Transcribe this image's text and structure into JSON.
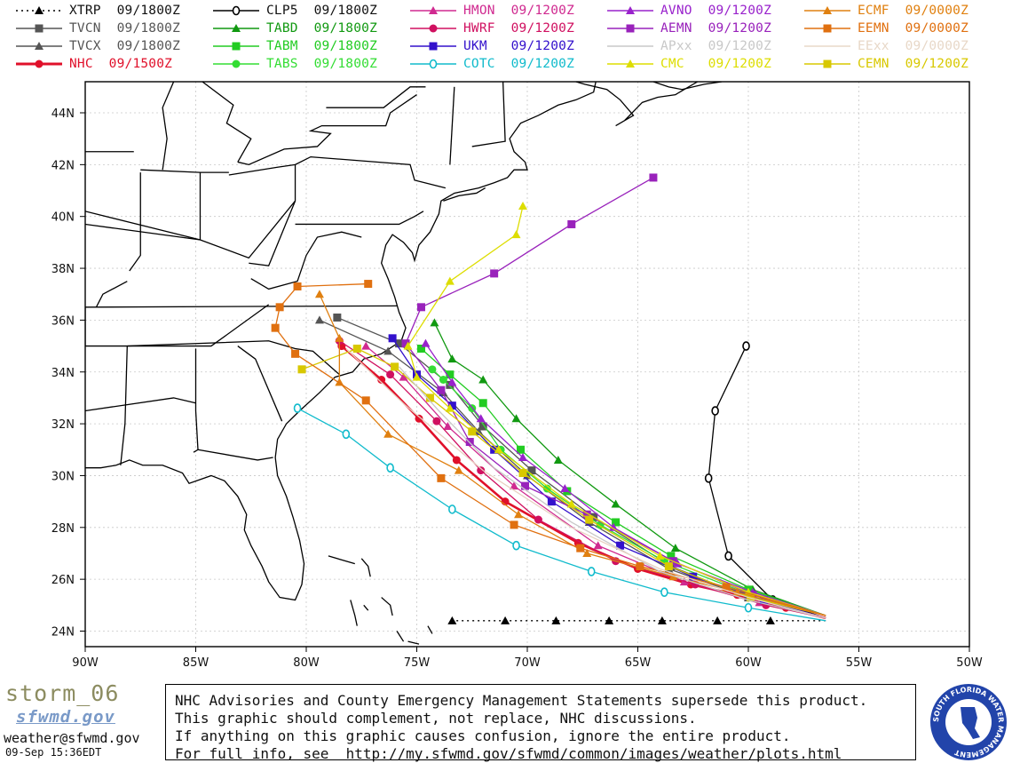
{
  "legend": [
    {
      "label": "XTRP  09/1800Z",
      "color": "#000000",
      "marker": "triangle",
      "dash": true
    },
    {
      "label": "TVCN  09/1800Z",
      "color": "#555555",
      "marker": "square"
    },
    {
      "label": "TVCX  09/1800Z",
      "color": "#555555",
      "marker": "triangle"
    },
    {
      "label": "NHC  09/1500Z",
      "color": "#e0102a",
      "marker": "circle",
      "bold": true
    },
    {
      "label": "CLP5  09/1800Z",
      "color": "#000000",
      "marker": "ring"
    },
    {
      "label": "TABD  09/1800Z",
      "color": "#119911",
      "marker": "triangle"
    },
    {
      "label": "TABM  09/1800Z",
      "color": "#22cc22",
      "marker": "square"
    },
    {
      "label": "TABS  09/1800Z",
      "color": "#33dd33",
      "marker": "circle"
    },
    {
      "label": "HMON  09/1200Z",
      "color": "#d02a90",
      "marker": "triangle"
    },
    {
      "label": "HWRF  09/1200Z",
      "color": "#d01060",
      "marker": "circle"
    },
    {
      "label": "UKM   09/1200Z",
      "color": "#3311cc",
      "marker": "square"
    },
    {
      "label": "COTC  09/1200Z",
      "color": "#11bbcc",
      "marker": "ring"
    },
    {
      "label": "AVNO  09/1200Z",
      "color": "#9922cc",
      "marker": "triangle"
    },
    {
      "label": "AEMN  09/1200Z",
      "color": "#9922bb",
      "marker": "square"
    },
    {
      "label": "APxx  09/1200Z",
      "color": "#c8c8c8",
      "marker": "none"
    },
    {
      "label": "CMC   09/1200Z",
      "color": "#dddd00",
      "marker": "triangle"
    },
    {
      "label": "ECMF  09/0000Z",
      "color": "#e08010",
      "marker": "triangle"
    },
    {
      "label": "EEMN  09/0000Z",
      "color": "#e07010",
      "marker": "square"
    },
    {
      "label": "EExx  09/0000Z",
      "color": "#e8d8c8",
      "marker": "none"
    },
    {
      "label": "CEMN  09/1200Z",
      "color": "#d8c800",
      "marker": "square"
    }
  ],
  "map": {
    "lat_labels": [
      "24N",
      "26N",
      "28N",
      "30N",
      "32N",
      "34N",
      "36N",
      "38N",
      "40N",
      "42N",
      "44N"
    ],
    "lon_labels": [
      "90W",
      "85W",
      "80W",
      "75W",
      "70W",
      "65W",
      "60W",
      "55W",
      "50W"
    ],
    "lon_range": [
      -90,
      -50
    ],
    "lat_range": [
      23.4,
      45.2
    ],
    "grid": true
  },
  "chart_data": {
    "type": "map-tracks",
    "tracks": [
      {
        "name": "XTRP",
        "color": "#000000",
        "marker": "triangle",
        "dash": true,
        "points": [
          [
            -56.5,
            24.4
          ],
          [
            -59,
            24.4
          ],
          [
            -61.4,
            24.4
          ],
          [
            -63.9,
            24.4
          ],
          [
            -66.3,
            24.4
          ],
          [
            -68.7,
            24.4
          ],
          [
            -71,
            24.4
          ],
          [
            -73.4,
            24.4
          ]
        ]
      },
      {
        "name": "CLP5",
        "color": "#000000",
        "marker": "ring",
        "points": [
          [
            -56.5,
            24.5
          ],
          [
            -58.9,
            25.2
          ],
          [
            -60.9,
            26.9
          ],
          [
            -61.8,
            29.9
          ],
          [
            -61.5,
            32.5
          ],
          [
            -60.1,
            35
          ]
        ]
      },
      {
        "name": "NHC",
        "color": "#e0102a",
        "marker": "circle",
        "bold": true,
        "points": [
          [
            -56.5,
            24.5
          ],
          [
            -58.3,
            24.9
          ],
          [
            -60.5,
            25.4
          ],
          [
            -62.6,
            25.8
          ],
          [
            -65,
            26.4
          ],
          [
            -67.7,
            27.4
          ],
          [
            -71,
            29
          ],
          [
            -73.2,
            30.6
          ],
          [
            -74.9,
            32.2
          ],
          [
            -76.6,
            33.7
          ],
          [
            -78.4,
            35
          ]
        ]
      },
      {
        "name": "TVCN",
        "color": "#555555",
        "marker": "square",
        "points": [
          [
            -56.5,
            24.5
          ],
          [
            -60,
            25.3
          ],
          [
            -63.5,
            26.5
          ],
          [
            -67,
            28.4
          ],
          [
            -69.8,
            30.2
          ],
          [
            -72,
            31.9
          ],
          [
            -73.5,
            33.5
          ],
          [
            -75.8,
            35.1
          ],
          [
            -78.6,
            36.1
          ]
        ]
      },
      {
        "name": "TVCX",
        "color": "#555555",
        "marker": "triangle",
        "points": [
          [
            -56.5,
            24.5
          ],
          [
            -60,
            25.3
          ],
          [
            -63.6,
            26.4
          ],
          [
            -67.2,
            28.2
          ],
          [
            -70,
            30
          ],
          [
            -72.2,
            31.7
          ],
          [
            -73.8,
            33.2
          ],
          [
            -76.3,
            34.8
          ],
          [
            -79.4,
            36
          ]
        ]
      },
      {
        "name": "TABD",
        "color": "#119911",
        "marker": "triangle",
        "points": [
          [
            -56.5,
            24.6
          ],
          [
            -59.8,
            25.6
          ],
          [
            -63.3,
            27.2
          ],
          [
            -66,
            28.9
          ],
          [
            -68.6,
            30.6
          ],
          [
            -70.5,
            32.2
          ],
          [
            -72,
            33.7
          ],
          [
            -73.4,
            34.5
          ],
          [
            -74.2,
            35.9
          ]
        ]
      },
      {
        "name": "TABM",
        "color": "#22cc22",
        "marker": "square",
        "points": [
          [
            -56.5,
            24.6
          ],
          [
            -60,
            25.6
          ],
          [
            -63.5,
            26.9
          ],
          [
            -66,
            28.2
          ],
          [
            -68.2,
            29.4
          ],
          [
            -70.3,
            31
          ],
          [
            -72,
            32.8
          ],
          [
            -73.5,
            33.9
          ],
          [
            -74.8,
            34.9
          ]
        ]
      },
      {
        "name": "TABS",
        "color": "#33dd33",
        "marker": "circle",
        "points": [
          [
            -56.5,
            24.6
          ],
          [
            -60.2,
            25.5
          ],
          [
            -63.8,
            26.7
          ],
          [
            -66.7,
            28.1
          ],
          [
            -69.1,
            29.5
          ],
          [
            -71.2,
            31
          ],
          [
            -72.5,
            32.6
          ],
          [
            -73.8,
            33.7
          ],
          [
            -74.3,
            34.1
          ]
        ]
      },
      {
        "name": "HMON",
        "color": "#d02a90",
        "marker": "triangle",
        "points": [
          [
            -56.5,
            24.5
          ],
          [
            -59.5,
            25.1
          ],
          [
            -62.9,
            25.9
          ],
          [
            -66.8,
            27.3
          ],
          [
            -70.6,
            29.6
          ],
          [
            -73.6,
            31.9
          ],
          [
            -75.6,
            33.8
          ],
          [
            -77.3,
            35
          ]
        ]
      },
      {
        "name": "HWRF",
        "color": "#d01060",
        "marker": "circle",
        "points": [
          [
            -56.5,
            24.5
          ],
          [
            -59.2,
            25
          ],
          [
            -62.4,
            25.8
          ],
          [
            -66,
            26.7
          ],
          [
            -69.5,
            28.3
          ],
          [
            -72.1,
            30.2
          ],
          [
            -74.1,
            32.1
          ],
          [
            -76.2,
            33.9
          ],
          [
            -78.5,
            35.2
          ]
        ]
      },
      {
        "name": "UKM",
        "color": "#3311cc",
        "marker": "square",
        "points": [
          [
            -56.5,
            24.5
          ],
          [
            -59.3,
            25.2
          ],
          [
            -62.5,
            26.1
          ],
          [
            -65.8,
            27.3
          ],
          [
            -68.9,
            29
          ],
          [
            -71.5,
            31
          ],
          [
            -73.4,
            32.7
          ],
          [
            -75,
            33.9
          ],
          [
            -76.1,
            35.3
          ]
        ]
      },
      {
        "name": "COTC",
        "color": "#11bbcc",
        "marker": "ring",
        "points": [
          [
            -56.5,
            24.4
          ],
          [
            -60,
            24.9
          ],
          [
            -63.8,
            25.5
          ],
          [
            -67.1,
            26.3
          ],
          [
            -70.5,
            27.3
          ],
          [
            -73.4,
            28.7
          ],
          [
            -76.2,
            30.3
          ],
          [
            -78.2,
            31.6
          ],
          [
            -80.4,
            32.6
          ]
        ]
      },
      {
        "name": "AVNO",
        "color": "#9922cc",
        "marker": "triangle",
        "points": [
          [
            -56.5,
            24.6
          ],
          [
            -59.8,
            25.5
          ],
          [
            -63.2,
            26.6
          ],
          [
            -66.1,
            28
          ],
          [
            -68.3,
            29.5
          ],
          [
            -70.2,
            30.7
          ],
          [
            -72.1,
            32.2
          ],
          [
            -73.4,
            33.6
          ],
          [
            -74.6,
            35.1
          ]
        ]
      },
      {
        "name": "AEMN",
        "color": "#9922bb",
        "marker": "square",
        "points": [
          [
            -56.5,
            24.6
          ],
          [
            -59.8,
            25.4
          ],
          [
            -63.4,
            26.7
          ],
          [
            -67.3,
            28.5
          ],
          [
            -70.1,
            29.6
          ],
          [
            -72.6,
            31.3
          ],
          [
            -73.9,
            33.3
          ],
          [
            -75.5,
            35.1
          ],
          [
            -74.8,
            36.5
          ],
          [
            -71.5,
            37.8
          ],
          [
            -68,
            39.7
          ],
          [
            -64.3,
            41.5
          ]
        ]
      },
      {
        "name": "CMC",
        "color": "#dddd00",
        "marker": "triangle",
        "points": [
          [
            -56.5,
            24.6
          ],
          [
            -60,
            25.5
          ],
          [
            -64,
            26.9
          ],
          [
            -68,
            28.9
          ],
          [
            -71.3,
            31
          ],
          [
            -73.5,
            32.6
          ],
          [
            -75,
            33.8
          ],
          [
            -75.4,
            35
          ],
          [
            -73.5,
            37.5
          ],
          [
            -70.5,
            39.3
          ],
          [
            -70.2,
            40.4
          ]
        ]
      },
      {
        "name": "CEMN",
        "color": "#d8c800",
        "marker": "square",
        "points": [
          [
            -56.5,
            24.6
          ],
          [
            -59.9,
            25.3
          ],
          [
            -63.6,
            26.5
          ],
          [
            -67.2,
            28.3
          ],
          [
            -70.2,
            30.1
          ],
          [
            -72.5,
            31.7
          ],
          [
            -74.4,
            33
          ],
          [
            -76,
            34.2
          ],
          [
            -77.7,
            34.9
          ],
          [
            -80.2,
            34.1
          ]
        ]
      },
      {
        "name": "ECMF",
        "color": "#e08010",
        "marker": "triangle",
        "points": [
          [
            -56.5,
            24.6
          ],
          [
            -60.5,
            25.5
          ],
          [
            -63.4,
            26.1
          ],
          [
            -67.3,
            27
          ],
          [
            -70.4,
            28.5
          ],
          [
            -73.1,
            30.2
          ],
          [
            -76.3,
            31.6
          ],
          [
            -78.5,
            33.6
          ],
          [
            -78.5,
            35.3
          ],
          [
            -79.4,
            37
          ]
        ]
      },
      {
        "name": "EEMN",
        "color": "#e07010",
        "marker": "square",
        "points": [
          [
            -56.5,
            24.6
          ],
          [
            -61,
            25.7
          ],
          [
            -64.9,
            26.5
          ],
          [
            -67.6,
            27.2
          ],
          [
            -70.6,
            28.1
          ],
          [
            -73.9,
            29.9
          ],
          [
            -77.3,
            32.9
          ],
          [
            -80.5,
            34.7
          ],
          [
            -81.4,
            35.7
          ],
          [
            -81.2,
            36.5
          ],
          [
            -80.4,
            37.3
          ],
          [
            -77.2,
            37.4
          ]
        ]
      },
      {
        "name": "APxx",
        "color": "#c8c8c8",
        "marker": "none",
        "points": [
          [
            -56.5,
            24.5
          ],
          [
            -60,
            25.2
          ],
          [
            -64,
            26.3
          ],
          [
            -68,
            28.2
          ],
          [
            -71.5,
            30.3
          ],
          [
            -74,
            32.5
          ],
          [
            -75.8,
            34.2
          ]
        ]
      },
      {
        "name": "EExx",
        "color": "#e8d0c0",
        "marker": "none",
        "points": [
          [
            -56.5,
            24.5
          ],
          [
            -60,
            25.3
          ],
          [
            -64,
            26.4
          ],
          [
            -68,
            28
          ],
          [
            -72,
            30.2
          ],
          [
            -75.5,
            32.7
          ],
          [
            -78.2,
            34.9
          ]
        ]
      }
    ]
  },
  "footer": {
    "storm_name": "storm_06",
    "agency_logo_text": "sfwmd.gov",
    "email": "weather@sfwmd.gov",
    "timestamp": "09-Sep 15:36EDT",
    "disclaimer": [
      "NHC Advisories and County Emergency Management Statements supersede this product.",
      "This graphic should complement, not replace, NHC discussions.",
      "If anything on this graphic causes confusion, ignore the entire product.",
      "For full info, see  http://my.sfwmd.gov/sfwmd/common/images/weather/plots.html"
    ],
    "seal_text": "SOUTH FLORIDA WATER MANAGEMENT",
    "seal_color": "#2244aa"
  }
}
